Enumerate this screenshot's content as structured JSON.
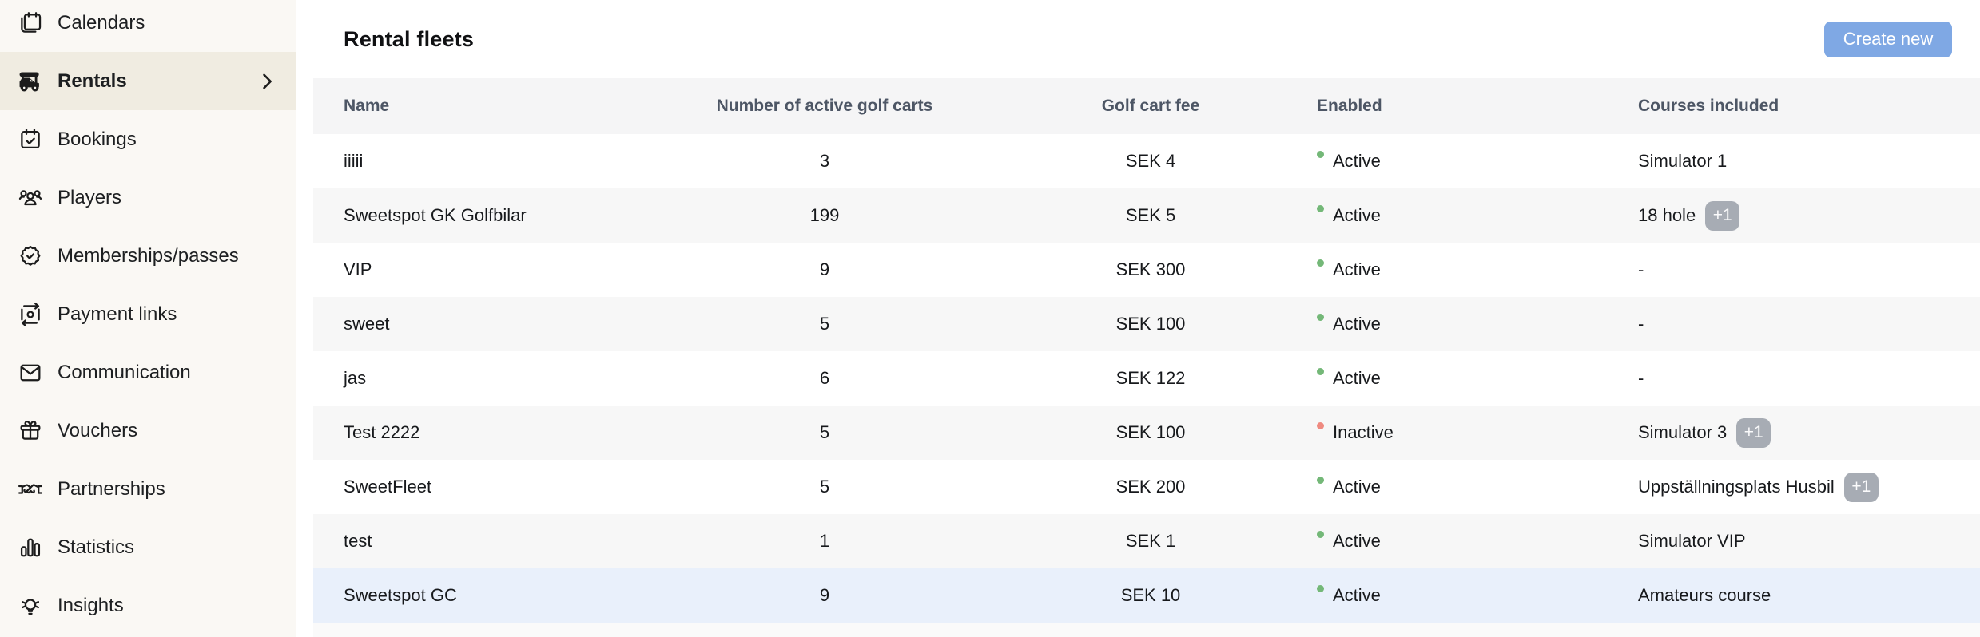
{
  "sidebar": {
    "items": [
      {
        "label": "Calendars",
        "icon": "calendars-icon",
        "active": false
      },
      {
        "label": "Rentals",
        "icon": "golf-cart-icon",
        "active": true,
        "chevron": true
      },
      {
        "label": "Bookings",
        "icon": "calendar-check-icon",
        "active": false
      },
      {
        "label": "Players",
        "icon": "players-icon",
        "active": false
      },
      {
        "label": "Memberships/passes",
        "icon": "badge-check-icon",
        "active": false
      },
      {
        "label": "Payment links",
        "icon": "payment-icon",
        "active": false
      },
      {
        "label": "Communication",
        "icon": "envelope-icon",
        "active": false
      },
      {
        "label": "Vouchers",
        "icon": "gift-icon",
        "active": false
      },
      {
        "label": "Partnerships",
        "icon": "handshake-icon",
        "active": false
      },
      {
        "label": "Statistics",
        "icon": "bar-chart-icon",
        "active": false
      },
      {
        "label": "Insights",
        "icon": "lightbulb-icon",
        "active": false
      }
    ]
  },
  "header": {
    "title": "Rental fleets",
    "create_button_label": "Create new"
  },
  "table": {
    "columns": [
      "Name",
      "Number of active golf carts",
      "Golf cart fee",
      "Enabled",
      "Courses included"
    ],
    "rows": [
      {
        "name": "iiiii",
        "carts": "3",
        "fee": "SEK 4",
        "status": "active",
        "status_label": "Active",
        "courses": "Simulator 1",
        "courses_badge": null,
        "highlighted": false
      },
      {
        "name": "Sweetspot GK Golfbilar",
        "carts": "199",
        "fee": "SEK 5",
        "status": "active",
        "status_label": "Active",
        "courses": "18 hole",
        "courses_badge": "+1",
        "highlighted": false
      },
      {
        "name": "VIP",
        "carts": "9",
        "fee": "SEK 300",
        "status": "active",
        "status_label": "Active",
        "courses": "-",
        "courses_badge": null,
        "highlighted": false
      },
      {
        "name": "sweet",
        "carts": "5",
        "fee": "SEK 100",
        "status": "active",
        "status_label": "Active",
        "courses": "-",
        "courses_badge": null,
        "highlighted": false
      },
      {
        "name": "jas",
        "carts": "6",
        "fee": "SEK 122",
        "status": "active",
        "status_label": "Active",
        "courses": "-",
        "courses_badge": null,
        "highlighted": false
      },
      {
        "name": "Test 2222",
        "carts": "5",
        "fee": "SEK 100",
        "status": "inactive",
        "status_label": "Inactive",
        "courses": "Simulator 3",
        "courses_badge": "+1",
        "highlighted": false
      },
      {
        "name": "SweetFleet",
        "carts": "5",
        "fee": "SEK 200",
        "status": "active",
        "status_label": "Active",
        "courses": "Uppställningsplats Husbil",
        "courses_badge": "+1",
        "highlighted": false
      },
      {
        "name": "test",
        "carts": "1",
        "fee": "SEK 1",
        "status": "active",
        "status_label": "Active",
        "courses": "Simulator VIP",
        "courses_badge": null,
        "highlighted": false
      },
      {
        "name": "Sweetspot GC",
        "carts": "9",
        "fee": "SEK 10",
        "status": "active",
        "status_label": "Active",
        "courses": "Amateurs course",
        "courses_badge": null,
        "highlighted": true
      }
    ]
  },
  "colors": {
    "button_blue": "#7fa8e4",
    "sidebar_bg": "#faf8f4",
    "sidebar_active_bg": "#f0ece1",
    "row_stripe": "#f7f7f7",
    "row_highlight": "#e9f0fb",
    "status_active_green": "#74b878",
    "status_inactive_red": "#ef8a80",
    "badge_gray": "#a7acb4",
    "header_text": "#4d5665"
  }
}
